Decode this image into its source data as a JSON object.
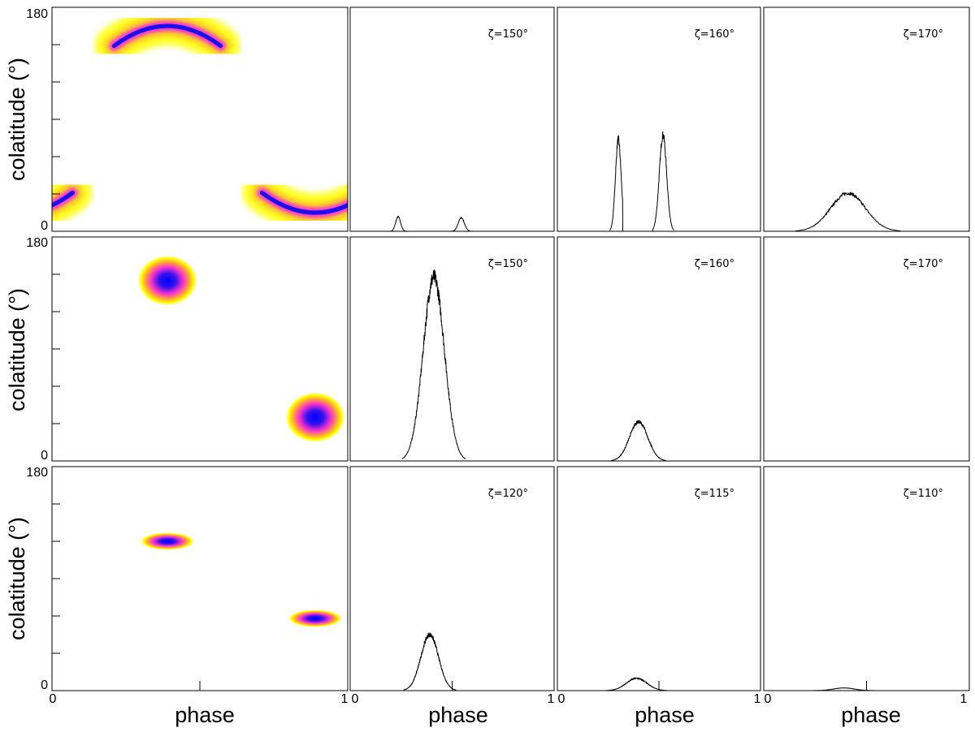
{
  "colors": {
    "map_outer": "#ffff00",
    "map_mid": "#ff33cc",
    "map_core": "#0000ff",
    "line": "#000000"
  },
  "labels": {
    "ylabel": "colatitude (°)",
    "xlabel": "phase",
    "ytick_top": "180",
    "ytick_bottom": "0",
    "xtick_left": "0",
    "xtick_right": "1"
  },
  "chart_data": {
    "type": "grid",
    "rows": 3,
    "cols": 4,
    "maps": [
      {
        "row": 0,
        "type": "heatmap",
        "xlabel": "",
        "ylabel": "colatitude (°)",
        "xlim": [
          0,
          1
        ],
        "ylim": [
          0,
          180
        ],
        "spots": [
          {
            "shape": "arc",
            "phase_center": 0.39,
            "colatitude": 165,
            "phase_halfwidth": 0.18,
            "curvature_deg": 16,
            "thickness_deg": 12
          },
          {
            "shape": "arc",
            "phase_center": 0.89,
            "colatitude": 15,
            "phase_halfwidth": 0.18,
            "curvature_deg": -16,
            "thickness_deg": 12
          }
        ]
      },
      {
        "row": 1,
        "type": "heatmap",
        "xlabel": "",
        "ylabel": "colatitude (°)",
        "xlim": [
          0,
          1
        ],
        "ylim": [
          0,
          180
        ],
        "spots": [
          {
            "shape": "blob",
            "phase_center": 0.39,
            "colatitude": 145,
            "phase_halfwidth": 0.1,
            "colat_halfwidth": 20
          },
          {
            "shape": "blob",
            "phase_center": 0.89,
            "colatitude": 35,
            "phase_halfwidth": 0.1,
            "colat_halfwidth": 20
          }
        ]
      },
      {
        "row": 2,
        "type": "heatmap",
        "xlabel": "phase",
        "ylabel": "colatitude (°)",
        "xlim": [
          0,
          1
        ],
        "ylim": [
          0,
          180
        ],
        "spots": [
          {
            "shape": "lens",
            "phase_center": 0.39,
            "colatitude": 120,
            "phase_halfwidth": 0.09,
            "colat_halfwidth": 7
          },
          {
            "shape": "lens",
            "phase_center": 0.89,
            "colatitude": 58,
            "phase_halfwidth": 0.09,
            "colat_halfwidth": 7
          }
        ]
      }
    ],
    "lightcurves": [
      {
        "row": 0,
        "col": 1,
        "type": "line",
        "label": "ζ=150°",
        "xlim": [
          0,
          1
        ],
        "ylim": [
          0,
          1
        ],
        "peaks": [
          {
            "center": 0.235,
            "height": 0.065,
            "width": 0.012
          },
          {
            "center": 0.545,
            "height": 0.06,
            "width": 0.015
          }
        ]
      },
      {
        "row": 0,
        "col": 2,
        "type": "line",
        "label": "ζ=160°",
        "xlim": [
          0,
          1
        ],
        "ylim": [
          0,
          1
        ],
        "peaks": [
          {
            "center": 0.3,
            "height": 0.41,
            "width": 0.014
          },
          {
            "center": 0.52,
            "height": 0.43,
            "width": 0.018
          }
        ],
        "zero_spans": [
          [
            0.322,
            0.47
          ]
        ]
      },
      {
        "row": 0,
        "col": 3,
        "type": "line",
        "label": "ζ=170°",
        "xlim": [
          0,
          1
        ],
        "ylim": [
          0,
          1
        ],
        "peaks": [
          {
            "center": 0.41,
            "height": 0.17,
            "width": 0.085
          }
        ]
      },
      {
        "row": 1,
        "col": 1,
        "type": "line",
        "label": "ζ=150°",
        "xlim": [
          0,
          1
        ],
        "ylim": [
          0,
          1
        ],
        "peaks": [
          {
            "center": 0.41,
            "height": 0.82,
            "width": 0.052
          }
        ]
      },
      {
        "row": 1,
        "col": 2,
        "type": "line",
        "label": "ζ=160°",
        "xlim": [
          0,
          1
        ],
        "ylim": [
          0,
          1
        ],
        "peaks": [
          {
            "center": 0.4,
            "height": 0.175,
            "width": 0.045
          }
        ]
      },
      {
        "row": 1,
        "col": 3,
        "type": "line",
        "label": "ζ=170°",
        "xlim": [
          0,
          1
        ],
        "ylim": [
          0,
          1
        ],
        "peaks": []
      },
      {
        "row": 2,
        "col": 1,
        "type": "line",
        "label": "ζ=120°",
        "xlim": [
          0,
          1
        ],
        "ylim": [
          0,
          1
        ],
        "peaks": [
          {
            "center": 0.39,
            "height": 0.25,
            "width": 0.043
          }
        ],
        "xticks": [
          0.5
        ]
      },
      {
        "row": 2,
        "col": 2,
        "type": "line",
        "label": "ζ=115°",
        "xlim": [
          0,
          1
        ],
        "ylim": [
          0,
          1
        ],
        "peaks": [
          {
            "center": 0.39,
            "height": 0.055,
            "width": 0.05
          }
        ],
        "xticks": [
          0.5
        ]
      },
      {
        "row": 2,
        "col": 3,
        "type": "line",
        "label": "ζ=110°",
        "xlim": [
          0,
          1
        ],
        "ylim": [
          0,
          1
        ],
        "peaks": [
          {
            "center": 0.39,
            "height": 0.012,
            "width": 0.05
          }
        ],
        "xticks": [
          0.5
        ]
      }
    ]
  }
}
